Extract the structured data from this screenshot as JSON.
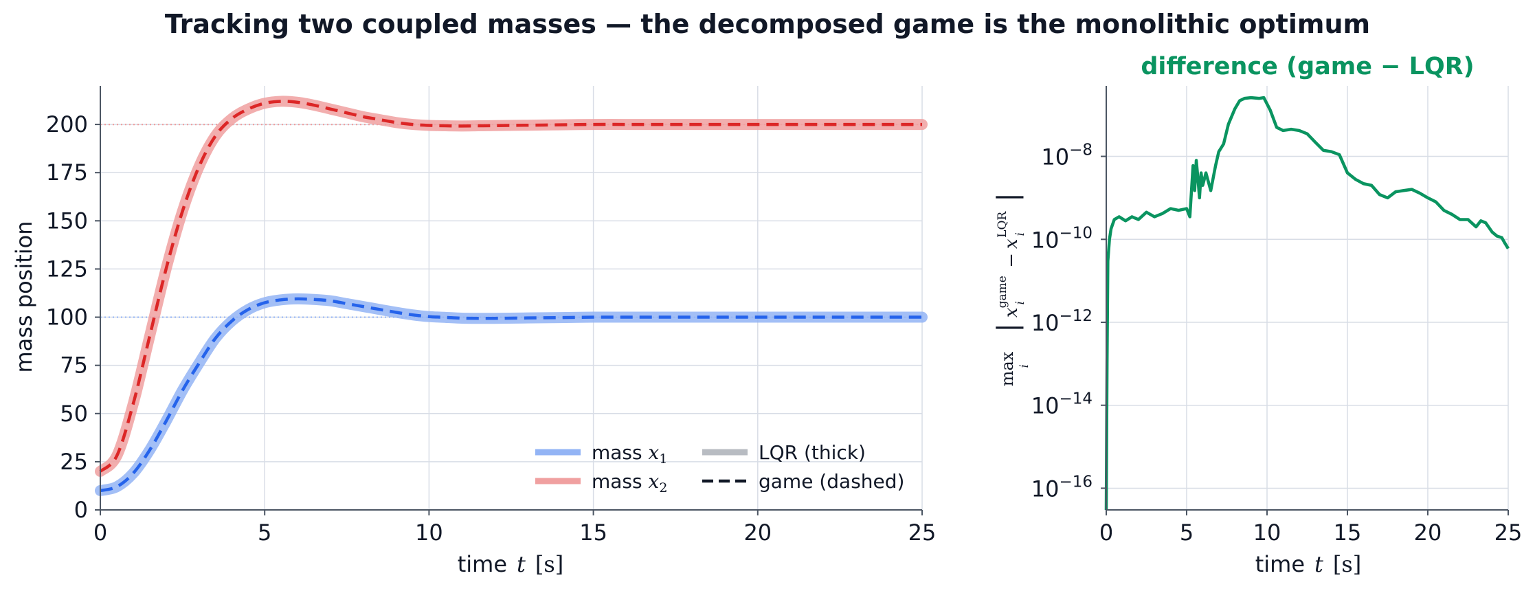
{
  "suptitle": "Tracking two coupled masses — the decomposed game is the monolithic optimum",
  "colors": {
    "mass1": "#2563eb",
    "mass1_light": "#93b4f5",
    "mass2": "#dc2626",
    "mass2_light": "#f0a0a0",
    "diff": "#0a9460",
    "lqr_legend": "#b8bcc2",
    "text": "#111827"
  },
  "chart_data": [
    {
      "type": "line",
      "title": "",
      "xlabel_word": "time",
      "xlabel_var": "t",
      "xlabel_unit": "[s]",
      "ylabel": "mass position",
      "xlim": [
        0,
        25
      ],
      "ylim": [
        0,
        220
      ],
      "xticks": [
        0,
        5,
        10,
        15,
        20,
        25
      ],
      "yticks": [
        0,
        25,
        50,
        75,
        100,
        125,
        150,
        175,
        200
      ],
      "grid": true,
      "legend_position": "lower-right",
      "reference_lines": [
        {
          "y": 200,
          "style": "dotted",
          "series": "mass x2"
        },
        {
          "y": 100,
          "style": "dotted",
          "series": "mass x1"
        }
      ],
      "x": [
        0,
        0.5,
        1,
        1.5,
        2,
        2.5,
        3,
        3.5,
        4,
        4.5,
        5,
        5.5,
        6,
        6.5,
        7,
        7.5,
        8,
        8.5,
        9,
        9.5,
        10,
        10.5,
        11,
        11.5,
        12,
        13,
        14,
        15,
        16,
        17,
        18,
        19,
        20,
        21,
        22,
        23,
        24,
        25
      ],
      "series": [
        {
          "name": "mass x1",
          "legend_label": "mass",
          "legend_var": "x",
          "legend_sub": "1",
          "values": [
            10,
            12,
            19,
            31,
            46,
            62,
            76,
            89,
            98,
            104,
            107.5,
            109,
            109.5,
            109.2,
            108.5,
            107,
            105.5,
            104,
            102.5,
            101.2,
            100.3,
            99.9,
            99.5,
            99.4,
            99.4,
            99.6,
            99.8,
            100,
            100,
            100,
            100,
            100,
            100,
            100,
            100,
            100,
            100,
            100
          ]
        },
        {
          "name": "mass x2",
          "legend_label": "mass",
          "legend_var": "x",
          "legend_sub": "2",
          "values": [
            20,
            28,
            55,
            90,
            125,
            155,
            178,
            194,
            203,
            208,
            211,
            212,
            211.5,
            210,
            208,
            206,
            204,
            202.5,
            201,
            200,
            199.5,
            199.3,
            199.2,
            199.3,
            199.4,
            199.6,
            199.8,
            200,
            200,
            200,
            200,
            200,
            200,
            200,
            200,
            200,
            200,
            200
          ]
        }
      ],
      "legend_style_entries": [
        {
          "label": "LQR (thick)"
        },
        {
          "label": "game (dashed)"
        }
      ]
    },
    {
      "type": "line",
      "title": "difference (game − LQR)",
      "xlabel_word": "time",
      "xlabel_var": "t",
      "xlabel_unit": "[s]",
      "ylabel_parts": {
        "op": "max",
        "op_sub": "i",
        "var": "x",
        "var_sub": "i",
        "sup1": "game",
        "sup2": "LQR"
      },
      "xlim": [
        0,
        25
      ],
      "y_scale": "log",
      "ylim": [
        3e-17,
        5e-07
      ],
      "xticks": [
        0,
        5,
        10,
        15,
        20,
        25
      ],
      "ytick_exponents": [
        -16,
        -14,
        -12,
        -10,
        -8
      ],
      "ytick_base": "10",
      "grid": true,
      "x": [
        0,
        0.05,
        0.1,
        0.2,
        0.3,
        0.5,
        0.8,
        1.2,
        1.6,
        2,
        2.5,
        3,
        3.5,
        4,
        4.5,
        5,
        5.2,
        5.4,
        5.5,
        5.6,
        5.7,
        5.8,
        5.9,
        6,
        6.2,
        6.5,
        6.8,
        7,
        7.3,
        7.6,
        8,
        8.3,
        8.6,
        9,
        9.5,
        9.8,
        10.2,
        10.6,
        11,
        11.5,
        12,
        12.5,
        13,
        13.5,
        14,
        14.5,
        15,
        15.5,
        16,
        16.5,
        17,
        17.5,
        18,
        18.5,
        19,
        19.5,
        20,
        20.5,
        21,
        21.5,
        22,
        22.5,
        23,
        23.3,
        23.6,
        24,
        24.3,
        24.6,
        24.8,
        25
      ],
      "series": [
        {
          "name": "",
          "values": [
            3e-17,
            1e-13,
            3e-11,
            1e-10,
            1.8e-10,
            3e-10,
            3.5e-10,
            2.8e-10,
            3.5e-10,
            3e-10,
            4.5e-10,
            3.5e-10,
            4.2e-10,
            5.5e-10,
            5e-10,
            5.5e-10,
            3.5e-10,
            6e-09,
            1.5e-09,
            8e-09,
            3e-09,
            1e-09,
            4e-09,
            2e-09,
            4e-09,
            1.5e-09,
            6e-09,
            1.3e-08,
            2e-08,
            6e-08,
            1.4e-07,
            2.2e-07,
            2.5e-07,
            2.6e-07,
            2.5e-07,
            2.6e-07,
            1.3e-07,
            5e-08,
            4.2e-08,
            4.5e-08,
            4.2e-08,
            3.5e-08,
            2.2e-08,
            1.4e-08,
            1.3e-08,
            1.1e-08,
            4e-09,
            2.8e-09,
            2.2e-09,
            2e-09,
            1.2e-09,
            1e-09,
            1.4e-09,
            1.5e-09,
            1.6e-09,
            1.3e-09,
            1e-09,
            8e-10,
            5e-10,
            4e-10,
            3e-10,
            3e-10,
            2e-10,
            2.8e-10,
            2.5e-10,
            1.5e-10,
            1.2e-10,
            1.1e-10,
            8e-11,
            6e-11
          ]
        }
      ]
    }
  ]
}
